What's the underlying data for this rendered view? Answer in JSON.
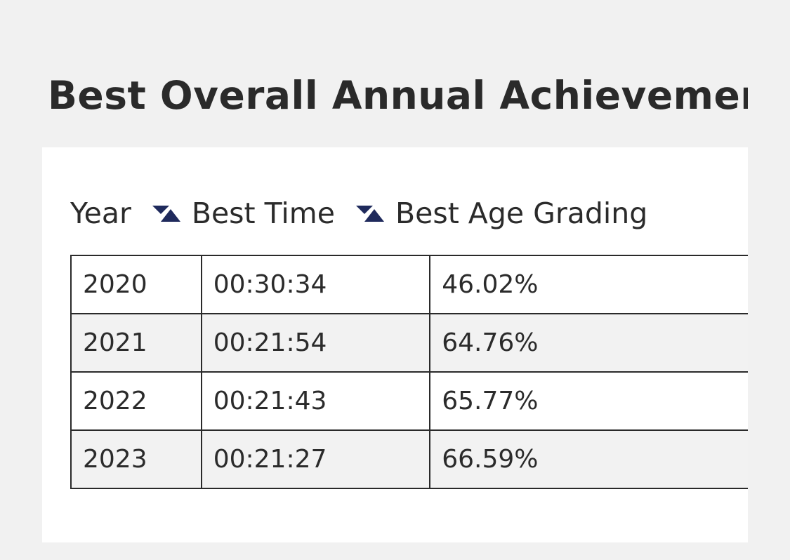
{
  "page": {
    "title": "Best Overall Annual Achievements"
  },
  "table": {
    "columns": [
      {
        "label": "Year",
        "sort_icon": "sort-triangle-icon"
      },
      {
        "label": "Best Time",
        "sort_icon": "sort-triangle-icon"
      },
      {
        "label": "Best Age Grading"
      }
    ],
    "rows": [
      {
        "year": "2020",
        "best_time": "00:30:34",
        "best_age_grading": "46.02%"
      },
      {
        "year": "2021",
        "best_time": "00:21:54",
        "best_age_grading": "64.76%"
      },
      {
        "year": "2022",
        "best_time": "00:21:43",
        "best_age_grading": "65.77%"
      },
      {
        "year": "2023",
        "best_time": "00:21:27",
        "best_age_grading": "66.59%"
      }
    ]
  },
  "colors": {
    "page_background": "#f1f1f1",
    "card_background": "#ffffff",
    "sort_icon": "#1f2a5c",
    "alt_row": "#f2f2f2",
    "text": "#2b2b2b"
  }
}
